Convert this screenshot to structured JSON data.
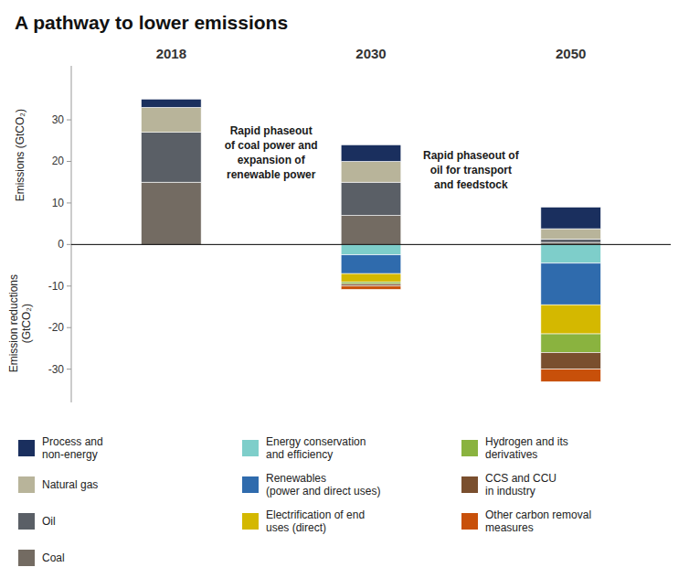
{
  "chart_data": {
    "type": "bar",
    "stacked": true,
    "title": "A pathway to lower emissions",
    "ylabel": [
      "Emissions (GtCO₂)",
      "Emission reductions\n(GtCO₂)"
    ],
    "categories": [
      "2018",
      "2030",
      "2050"
    ],
    "series": [
      {
        "name": "Coal",
        "color": "#736b62",
        "values": [
          15.0,
          7.0,
          0.5
        ]
      },
      {
        "name": "Oil",
        "color": "#5a5f66",
        "values": [
          12.0,
          8.0,
          0.8
        ]
      },
      {
        "name": "Natural gas",
        "color": "#b8b49a",
        "values": [
          6.0,
          5.0,
          2.5
        ]
      },
      {
        "name": "Process and\nnon-energy",
        "color": "#1a2f5e",
        "values": [
          2.0,
          4.0,
          5.2
        ]
      },
      {
        "name": "Energy conservation\nand efficiency",
        "color": "#7ececa",
        "values": [
          null,
          -2.5,
          -4.5
        ]
      },
      {
        "name": "Renewables\n(power and direct uses)",
        "color": "#2f6bad",
        "values": [
          null,
          -4.5,
          -10.0
        ]
      },
      {
        "name": "Electrification of end\nuses (direct)",
        "color": "#d4b800",
        "values": [
          null,
          -2.0,
          -7.0
        ]
      },
      {
        "name": "Hydrogen and its\nderivatives",
        "color": "#8ab33f",
        "values": [
          null,
          -0.5,
          -4.5
        ]
      },
      {
        "name": "CCS and CCU\nin industry",
        "color": "#7a4f2e",
        "values": [
          null,
          -0.5,
          -4.0
        ]
      },
      {
        "name": "Other carbon removal\nmeasures",
        "color": "#c8500a",
        "values": [
          null,
          -0.8,
          -3.0
        ]
      }
    ],
    "annotations": [
      {
        "text": "Rapid phaseout\nof coal power and\nexpansion of\nrenewable power"
      },
      {
        "text": "Rapid phaseout of\noil for transport\nand feedstock"
      }
    ],
    "ylim": [
      -38,
      43
    ],
    "yticks": [
      -30,
      -20,
      -10,
      0,
      10,
      20,
      30
    ],
    "grid": false,
    "legend": "bottom"
  }
}
